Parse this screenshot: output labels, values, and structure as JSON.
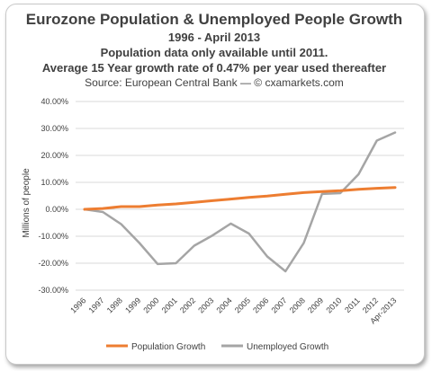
{
  "chart_data": {
    "type": "line",
    "title": "Eurozone Population & Unemployed People Growth",
    "subtitle": "1996 - April 2013",
    "notes": [
      "Population data only available until 2011.",
      "Average 15 Year growth rate of 0.47% per year used thereafter"
    ],
    "source": "Source: European Central Bank — © cxamarkets.com",
    "xlabel": "",
    "ylabel": "Millions of people",
    "categories": [
      "1996",
      "1997",
      "1998",
      "1999",
      "2000",
      "2001",
      "2002",
      "2003",
      "2004",
      "2005",
      "2006",
      "2007",
      "2008",
      "2009",
      "2010",
      "2011",
      "2012",
      "Apr-2013"
    ],
    "ylim": [
      -30,
      40
    ],
    "yticks": [
      40,
      30,
      20,
      10,
      0,
      -10,
      -20,
      -30
    ],
    "ytick_labels": [
      "40.00%",
      "30.00%",
      "20.00%",
      "10.00%",
      "0.00%",
      "-10.00%",
      "-20.00%",
      "-30.00%"
    ],
    "grid": true,
    "legend": "bottom",
    "series": [
      {
        "name": "Population Growth",
        "color": "#ed7d31",
        "values": [
          0,
          0.3,
          1.0,
          1.0,
          1.6,
          2.0,
          2.6,
          3.2,
          3.8,
          4.4,
          4.9,
          5.6,
          6.2,
          6.6,
          6.9,
          7.4,
          7.8,
          8.1
        ]
      },
      {
        "name": "Unemployed Growth",
        "color": "#a5a5a5",
        "values": [
          0,
          -1.0,
          -5.5,
          -12.5,
          -20.3,
          -20.0,
          -13.5,
          -9.7,
          -5.3,
          -9.0,
          -17.5,
          -23.0,
          -12.5,
          5.7,
          6.0,
          13.0,
          25.5,
          28.5
        ]
      }
    ]
  }
}
